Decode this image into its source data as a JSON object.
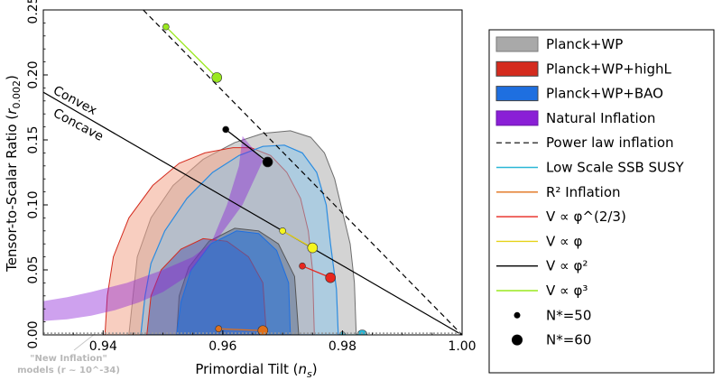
{
  "chart_data": {
    "type": "scatter",
    "xlabel": "Primordial Tilt (n_s)",
    "ylabel": "Tensor-to-Scalar Ratio (r_0.002)",
    "xlim": [
      0.93,
      1.0
    ],
    "ylim": [
      0.0,
      0.25
    ],
    "x_ticks": [
      "0.94",
      "0.96",
      "0.98",
      "1.00"
    ],
    "y_ticks": [
      "0.00",
      "0.05",
      "0.10",
      "0.15",
      "0.20",
      "0.25"
    ],
    "grid": false,
    "legend_position": "outside-right",
    "annotations": {
      "convex": "Convex",
      "concave": "Concave",
      "new_inflation_line1": "\"New Inflation\"",
      "new_inflation_line2": "models (r ~ 10^-34)"
    },
    "colors": {
      "planck_wp": "#9e9e9e",
      "planck_wp_highl": "#d42b1e",
      "planck_wp_bao": "#1e6fe0",
      "natural_inflation": "#8a1fd6",
      "low_scale_ssb_susy": "#2bb7d6",
      "r2_inflation": "#e0701a",
      "phi_2_3": "#e8261e",
      "phi_1": "#f5f51e",
      "phi_2": "#000000",
      "phi_3": "#9ae81e"
    },
    "legend": [
      {
        "key": "planck_wp",
        "label": "Planck+WP",
        "style": "patch"
      },
      {
        "key": "planck_wp_highl",
        "label": "Planck+WP+highL",
        "style": "patch"
      },
      {
        "key": "planck_wp_bao",
        "label": "Planck+WP+BAO",
        "style": "patch"
      },
      {
        "key": "natural_inflation",
        "label": "Natural Inflation",
        "style": "patch"
      },
      {
        "key": "power_law",
        "label": "Power law inflation",
        "style": "dashed"
      },
      {
        "key": "low_scale_ssb_susy",
        "label": "Low Scale SSB SUSY",
        "style": "line"
      },
      {
        "key": "r2_inflation",
        "label": "R² Inflation",
        "style": "line"
      },
      {
        "key": "phi_2_3",
        "label": "V ∝ φ^(2/3)",
        "style": "line"
      },
      {
        "key": "phi_1",
        "label": "V ∝ φ",
        "style": "line"
      },
      {
        "key": "phi_2",
        "label": "V ∝ φ²",
        "style": "line"
      },
      {
        "key": "phi_3",
        "label": "V ∝ φ³",
        "style": "line"
      },
      {
        "key": "n50",
        "label": "N*=50",
        "style": "small-dot"
      },
      {
        "key": "n60",
        "label": "N*=60",
        "style": "big-dot"
      }
    ],
    "series": [
      {
        "name": "R² Inflation",
        "key": "r2_inflation",
        "points": [
          [
            0.9593,
            0.0047
          ],
          [
            0.9667,
            0.0033
          ]
        ]
      },
      {
        "name": "V ∝ φ^(2/3)",
        "key": "phi_2_3",
        "points": [
          [
            0.9733,
            0.053
          ],
          [
            0.978,
            0.044
          ]
        ]
      },
      {
        "name": "V ∝ φ",
        "key": "phi_1",
        "points": [
          [
            0.97,
            0.08
          ],
          [
            0.975,
            0.067
          ]
        ]
      },
      {
        "name": "V ∝ φ²",
        "key": "phi_2",
        "points": [
          [
            0.9605,
            0.158
          ],
          [
            0.9675,
            0.133
          ]
        ]
      },
      {
        "name": "V ∝ φ³",
        "key": "phi_3",
        "points": [
          [
            0.9505,
            0.237
          ],
          [
            0.959,
            0.198
          ]
        ]
      },
      {
        "name": "Low Scale SSB SUSY",
        "key": "low_scale_ssb_susy",
        "points": [
          [
            0.98,
            0.0
          ],
          [
            0.9833,
            0.0
          ]
        ]
      }
    ],
    "power_law": {
      "points": [
        [
          0.9467,
          0.25
        ],
        [
          1.0,
          0.0
        ]
      ]
    },
    "convex_concave_line": {
      "points": [
        [
          0.93,
          0.1867
        ],
        [
          1.0,
          0.0
        ]
      ]
    },
    "contours": {
      "planck_wp_95": [
        [
          0.9443,
          0.0
        ],
        [
          0.945,
          0.03
        ],
        [
          0.9457,
          0.06
        ],
        [
          0.948,
          0.09
        ],
        [
          0.9517,
          0.115
        ],
        [
          0.9567,
          0.135
        ],
        [
          0.962,
          0.148
        ],
        [
          0.9667,
          0.155
        ],
        [
          0.9713,
          0.157
        ],
        [
          0.9747,
          0.152
        ],
        [
          0.977,
          0.14
        ],
        [
          0.9787,
          0.12
        ],
        [
          0.98,
          0.095
        ],
        [
          0.9813,
          0.07
        ],
        [
          0.982,
          0.04
        ],
        [
          0.9823,
          0.0
        ]
      ],
      "planck_wp_68": [
        [
          0.9523,
          0.0
        ],
        [
          0.9527,
          0.03
        ],
        [
          0.9543,
          0.052
        ],
        [
          0.9577,
          0.072
        ],
        [
          0.962,
          0.082
        ],
        [
          0.966,
          0.08
        ],
        [
          0.9693,
          0.07
        ],
        [
          0.972,
          0.045
        ],
        [
          0.9727,
          0.0
        ]
      ],
      "planck_wp_highl_95": [
        [
          0.9403,
          0.0
        ],
        [
          0.9407,
          0.03
        ],
        [
          0.9417,
          0.06
        ],
        [
          0.9443,
          0.09
        ],
        [
          0.9483,
          0.115
        ],
        [
          0.9527,
          0.132
        ],
        [
          0.957,
          0.14
        ],
        [
          0.9617,
          0.144
        ],
        [
          0.9647,
          0.144
        ],
        [
          0.968,
          0.138
        ],
        [
          0.9707,
          0.125
        ],
        [
          0.973,
          0.105
        ],
        [
          0.9743,
          0.08
        ],
        [
          0.975,
          0.05
        ],
        [
          0.9753,
          0.0
        ]
      ],
      "planck_wp_highl_68": [
        [
          0.9473,
          0.0
        ],
        [
          0.948,
          0.03
        ],
        [
          0.9497,
          0.05
        ],
        [
          0.953,
          0.066
        ],
        [
          0.9567,
          0.074
        ],
        [
          0.9607,
          0.072
        ],
        [
          0.9643,
          0.06
        ],
        [
          0.9667,
          0.04
        ],
        [
          0.9673,
          0.0
        ]
      ],
      "planck_wp_bao_95": [
        [
          0.9463,
          0.0
        ],
        [
          0.947,
          0.03
        ],
        [
          0.948,
          0.055
        ],
        [
          0.9503,
          0.08
        ],
        [
          0.954,
          0.105
        ],
        [
          0.9583,
          0.125
        ],
        [
          0.9627,
          0.138
        ],
        [
          0.9667,
          0.145
        ],
        [
          0.9703,
          0.146
        ],
        [
          0.9733,
          0.14
        ],
        [
          0.9757,
          0.125
        ],
        [
          0.9773,
          0.1
        ],
        [
          0.978,
          0.07
        ],
        [
          0.979,
          0.035
        ],
        [
          0.9793,
          0.0
        ]
      ],
      "planck_wp_bao_68": [
        [
          0.9523,
          0.0
        ],
        [
          0.953,
          0.025
        ],
        [
          0.9547,
          0.05
        ],
        [
          0.958,
          0.07
        ],
        [
          0.9623,
          0.08
        ],
        [
          0.966,
          0.078
        ],
        [
          0.969,
          0.065
        ],
        [
          0.971,
          0.04
        ],
        [
          0.9713,
          0.0
        ]
      ],
      "natural_inflation_band": [
        [
          0.93,
          0.0107
        ],
        [
          0.934,
          0.012
        ],
        [
          0.938,
          0.0147
        ],
        [
          0.942,
          0.019
        ],
        [
          0.946,
          0.025
        ],
        [
          0.95,
          0.033
        ],
        [
          0.954,
          0.045
        ],
        [
          0.958,
          0.07
        ],
        [
          0.9607,
          0.1
        ],
        [
          0.9627,
          0.13
        ],
        [
          0.9633,
          0.153
        ],
        [
          0.9667,
          0.134
        ],
        [
          0.9633,
          0.1
        ],
        [
          0.9593,
          0.075
        ],
        [
          0.955,
          0.06
        ],
        [
          0.95,
          0.05
        ],
        [
          0.944,
          0.04
        ],
        [
          0.938,
          0.033
        ],
        [
          0.934,
          0.029
        ],
        [
          0.93,
          0.026
        ]
      ]
    }
  }
}
